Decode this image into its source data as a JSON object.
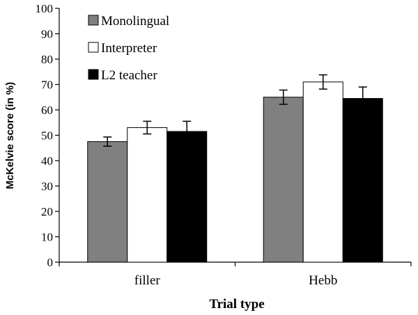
{
  "chart_data": {
    "type": "bar",
    "title": "",
    "xlabel": "Trial type",
    "ylabel": "McKelvie score (in %)",
    "ylim": [
      0,
      100
    ],
    "yticks": [
      0,
      10,
      20,
      30,
      40,
      50,
      60,
      70,
      80,
      90,
      100
    ],
    "grid": false,
    "legend_position": "top-left",
    "categories": [
      "filler",
      "Hebb"
    ],
    "series": [
      {
        "name": "Monolingual",
        "color": "#808080",
        "values": [
          47.5,
          65.0
        ],
        "error": [
          1.8,
          2.8
        ]
      },
      {
        "name": "Interpreter",
        "color": "#ffffff",
        "values": [
          53.0,
          71.0
        ],
        "error": [
          2.5,
          2.8
        ]
      },
      {
        "name": "L2 teacher",
        "color": "#000000",
        "values": [
          51.5,
          64.5
        ],
        "error": [
          4.0,
          4.5
        ]
      }
    ]
  }
}
